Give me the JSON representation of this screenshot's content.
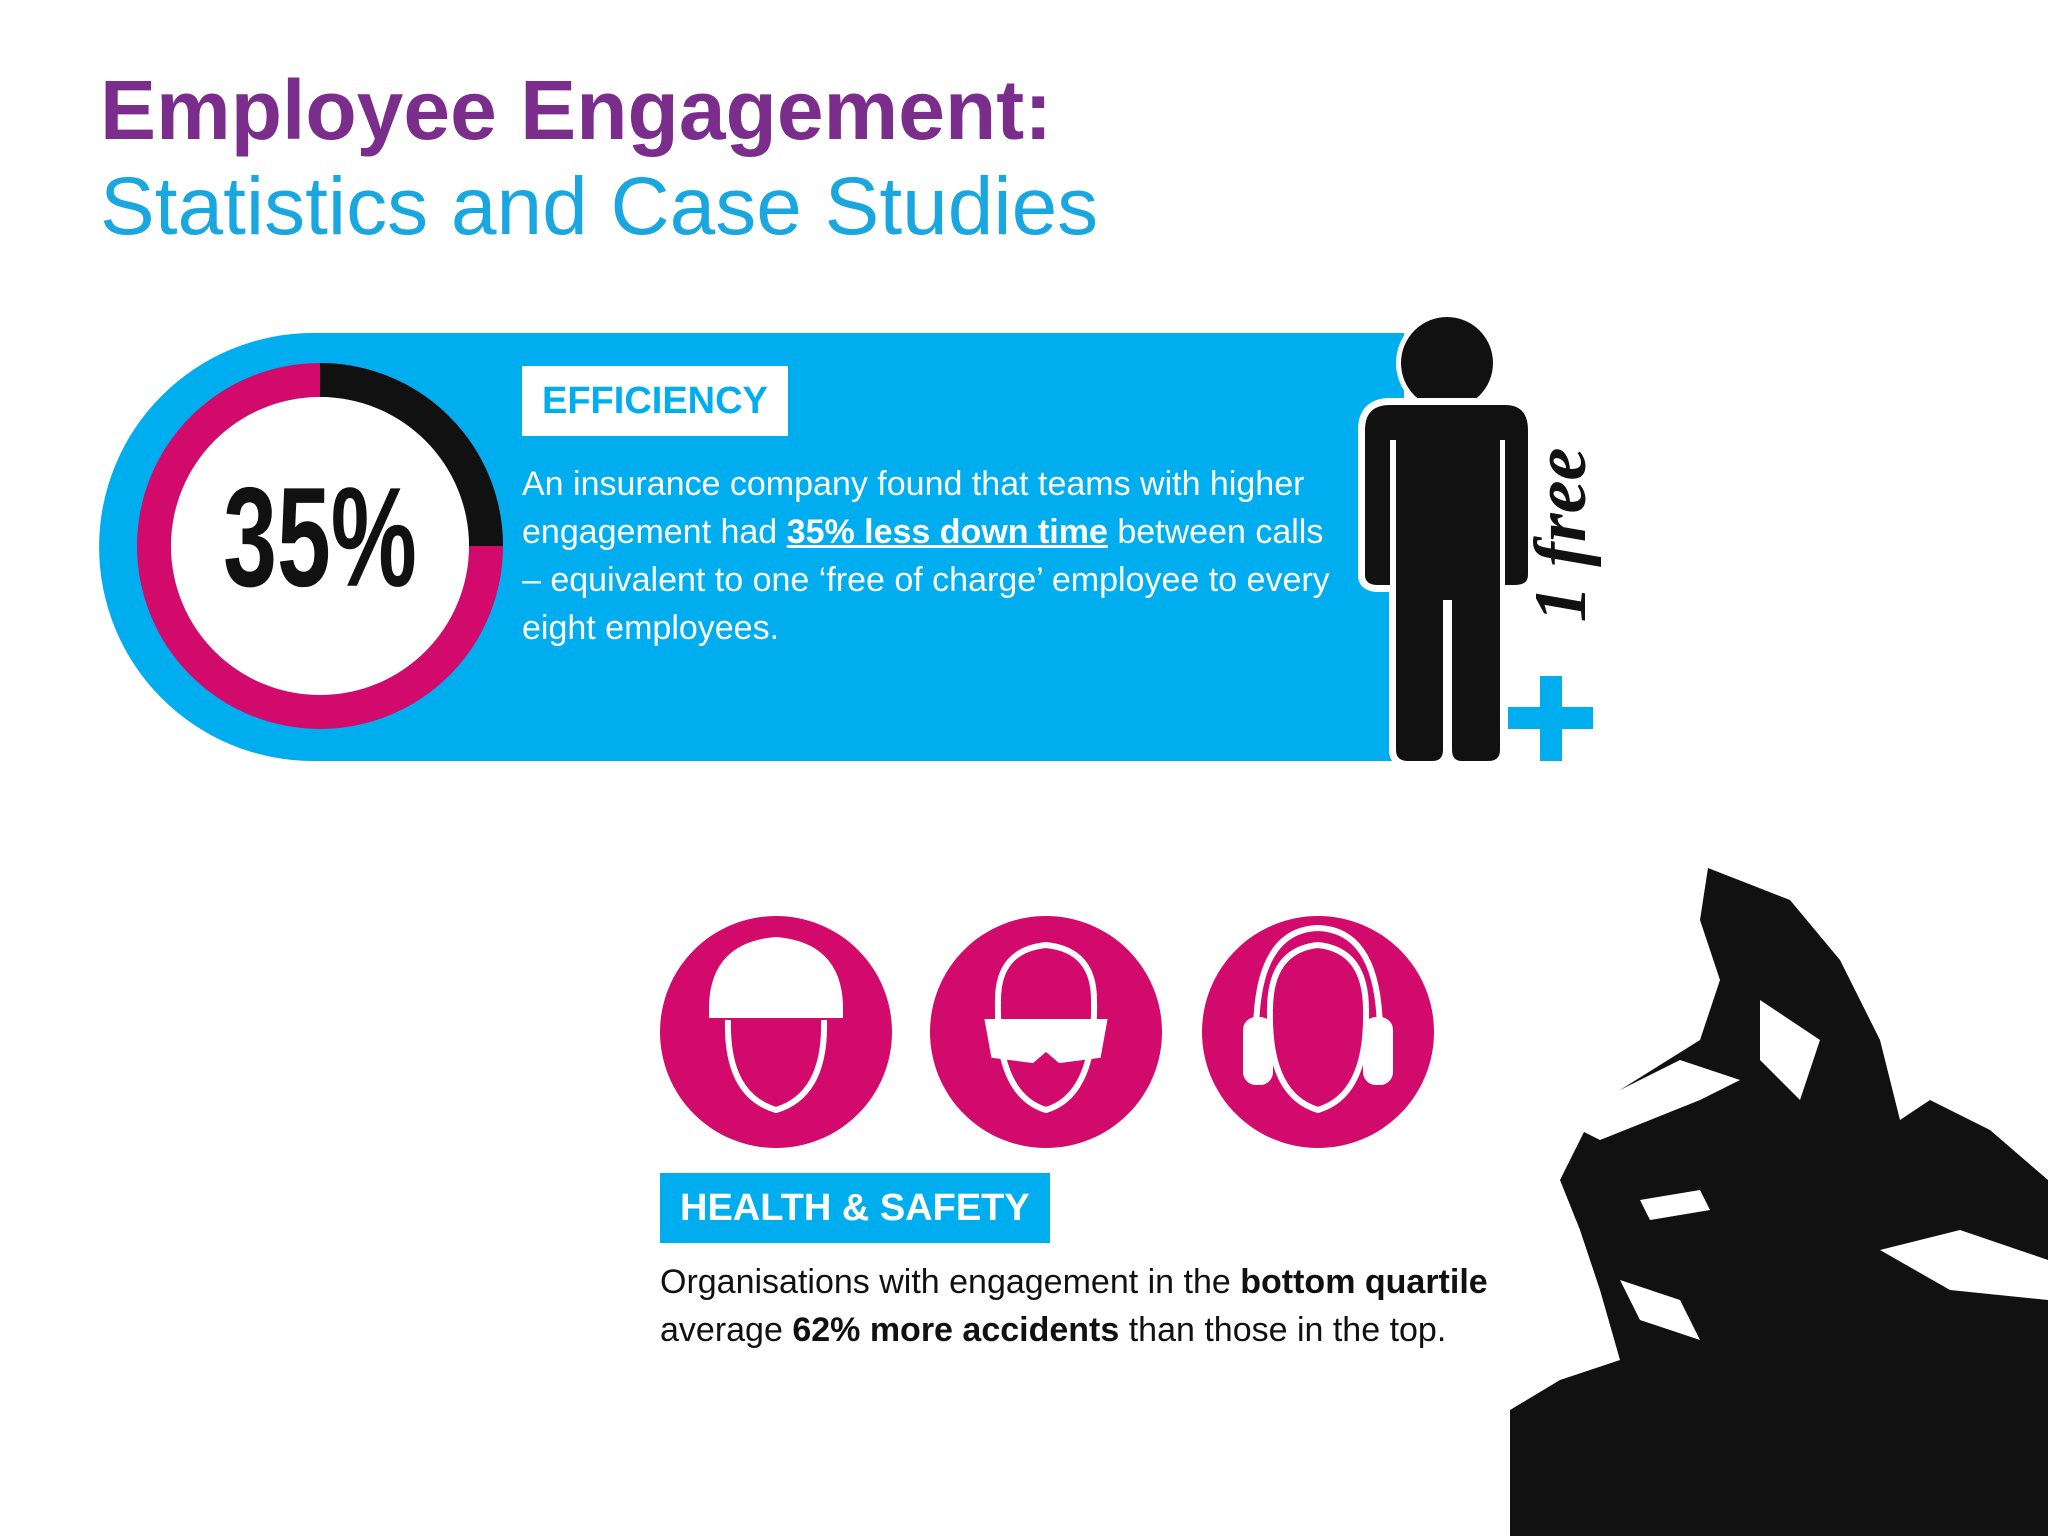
{
  "header": {
    "title": "Employee Engagement:",
    "subtitle": "Statistics and Case Studies"
  },
  "efficiency": {
    "stat": "35%",
    "heading": "EFFICIENCY",
    "text": [
      "An insurance company found that teams with higher engagement had ",
      "35% less down time",
      " between calls – equivalent to one ‘free of charge’ employee to every eight employees."
    ],
    "figure_label": "1 free"
  },
  "health_safety": {
    "heading": "HEALTH & SAFETY",
    "text": [
      "Organisations with engagement in the ",
      "bottom quartile",
      " average ",
      "62% more accidents",
      " than those in the top."
    ]
  }
}
